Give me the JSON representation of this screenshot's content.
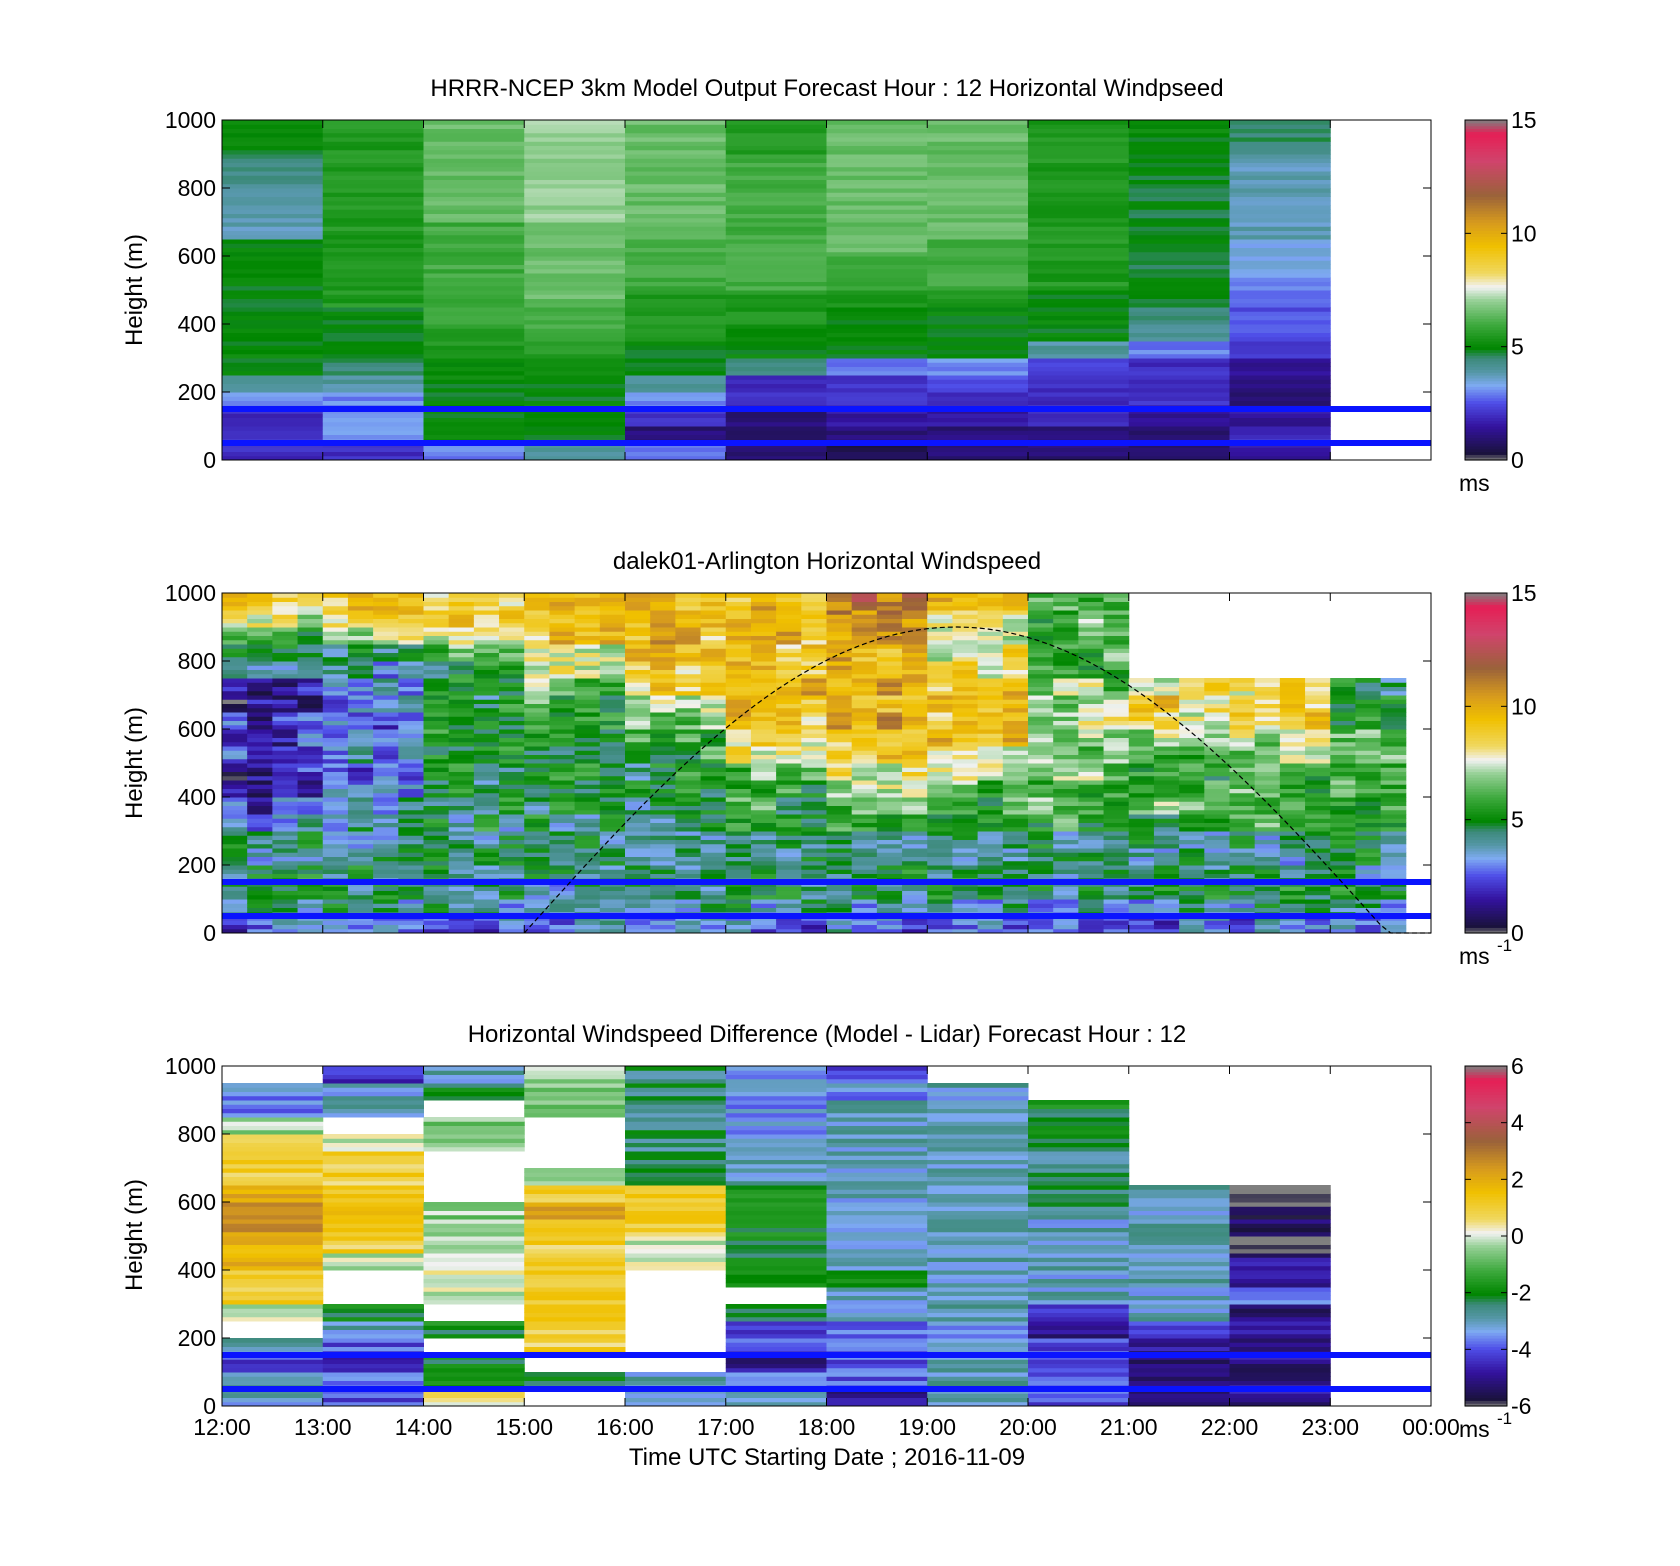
{
  "chart_data": [
    {
      "type": "heatmap",
      "title": "HRRR-NCEP 3km Model Output   Forecast Hour : 12 Horizontal Windpseed",
      "ylabel": "Height (m)",
      "xlabel": "",
      "ylim": [
        0,
        1000
      ],
      "yticks": [
        "0",
        "200",
        "400",
        "600",
        "800",
        "1000"
      ],
      "xticks": [
        "12:00",
        "13:00",
        "14:00",
        "15:00",
        "16:00",
        "17:00",
        "18:00",
        "19:00",
        "20:00",
        "21:00",
        "22:00",
        "23:00",
        "00:00"
      ],
      "x_tick_labels_visible": false,
      "colorbar": {
        "min": 0,
        "max": 15,
        "ticks": [
          "0",
          "5",
          "10",
          "15"
        ],
        "unit": "ms",
        "unit_sup": ""
      },
      "reference_lines_m": [
        150,
        50
      ],
      "hours": [
        12,
        13,
        14,
        15,
        16,
        17,
        18,
        19,
        20,
        21,
        22
      ],
      "height_bins_m": [
        25,
        75,
        125,
        175,
        225,
        275,
        325,
        375,
        425,
        475,
        525,
        575,
        625,
        675,
        725,
        775,
        825,
        875,
        925,
        975
      ],
      "values": [
        [
          2,
          2,
          3,
          4,
          3,
          1,
          0.5,
          1,
          1,
          1,
          1.5
        ],
        [
          2,
          3,
          5,
          5,
          1,
          1,
          1,
          1,
          1,
          1,
          2
        ],
        [
          2,
          3,
          5,
          5,
          2,
          1,
          1.5,
          1.5,
          2,
          1.5,
          1.5
        ],
        [
          3,
          3,
          5,
          5,
          3,
          2,
          2,
          2,
          2,
          2,
          1
        ],
        [
          4,
          4,
          5,
          5,
          4,
          2,
          2,
          2.5,
          2,
          2,
          1
        ],
        [
          5,
          4.5,
          5,
          5,
          5,
          4.5,
          3,
          3,
          2.5,
          2,
          1.5
        ],
        [
          5,
          5,
          5.5,
          5.5,
          5,
          5,
          5,
          5,
          4,
          3,
          2
        ],
        [
          5,
          5,
          5.5,
          6,
          5.5,
          5,
          5,
          5,
          5,
          4,
          2.5
        ],
        [
          5,
          5,
          6,
          6,
          5.5,
          5.5,
          5,
          5,
          5,
          4.5,
          2.5
        ],
        [
          5,
          5.5,
          6,
          6.5,
          5.5,
          5.5,
          5.5,
          5.5,
          5,
          4.8,
          3
        ],
        [
          5,
          5.5,
          6,
          6.5,
          6,
          6,
          6,
          6,
          5.5,
          4.8,
          3
        ],
        [
          5,
          5.5,
          6,
          6.5,
          6,
          6,
          6,
          6,
          5.5,
          4.8,
          3.5
        ],
        [
          5,
          5.5,
          6,
          6.5,
          6,
          6,
          6.5,
          6,
          5.5,
          4.8,
          3.5
        ],
        [
          3.8,
          5.5,
          6,
          6.5,
          6.5,
          6,
          6.5,
          6.5,
          5.5,
          4.8,
          3.8
        ],
        [
          3.8,
          5.5,
          6.5,
          7,
          6.5,
          6,
          6.5,
          6.5,
          5.5,
          4.8,
          3.8
        ],
        [
          3.8,
          5.5,
          6.5,
          7,
          6.5,
          6,
          6.5,
          6.5,
          5.5,
          4.8,
          3.8
        ],
        [
          4.2,
          5.5,
          6.5,
          7,
          6.5,
          6,
          6.5,
          6.5,
          5.5,
          4.8,
          3.8
        ],
        [
          4.5,
          5.5,
          6.5,
          7,
          6.5,
          6,
          6.5,
          6.5,
          5.5,
          4.8,
          3.8
        ],
        [
          5,
          5.5,
          6.5,
          7,
          6.5,
          5.5,
          6.5,
          6.5,
          5.5,
          5,
          4.5
        ],
        [
          5,
          5.5,
          6.5,
          7,
          6.5,
          5.5,
          6.5,
          6.5,
          5.5,
          5,
          4.5
        ]
      ]
    },
    {
      "type": "heatmap",
      "title": "dalek01-Arlington  Horizontal Windspeed",
      "ylabel": "Height (m)",
      "xlabel": "",
      "ylim": [
        0,
        1000
      ],
      "yticks": [
        "0",
        "200",
        "400",
        "600",
        "800",
        "1000"
      ],
      "xticks": [
        "12:00",
        "13:00",
        "14:00",
        "15:00",
        "16:00",
        "17:00",
        "18:00",
        "19:00",
        "20:00",
        "21:00",
        "22:00",
        "23:00",
        "00:00"
      ],
      "x_tick_labels_visible": false,
      "colorbar": {
        "min": 0,
        "max": 15,
        "ticks": [
          "0",
          "5",
          "10",
          "15"
        ],
        "unit": "ms",
        "unit_sup": "-1"
      },
      "reference_lines_m": [
        150,
        50
      ],
      "columns_per_hour": 4,
      "column_count": 47,
      "height_bins_m": [
        25,
        75,
        125,
        175,
        225,
        275,
        325,
        375,
        425,
        475,
        525,
        575,
        625,
        675,
        725,
        775,
        825,
        875,
        925,
        975
      ],
      "profile_hour_keys": [
        12,
        13,
        14,
        15,
        16,
        17,
        18,
        19,
        20,
        21,
        22,
        23
      ],
      "profiles": [
        [
          3,
          4,
          4.5,
          4.5,
          4.5,
          4.5,
          3.5,
          2.5,
          2,
          2,
          2,
          2,
          2,
          1.5,
          2,
          3,
          4.5,
          6,
          8,
          8.5
        ],
        [
          3,
          4,
          4.5,
          4.5,
          4.5,
          4.5,
          4.5,
          3.5,
          3,
          3,
          3,
          3,
          3,
          3,
          3,
          3.5,
          4.5,
          7.5,
          8.5,
          9
        ],
        [
          3,
          4,
          4.5,
          4.5,
          4.5,
          4.5,
          4.5,
          4.5,
          5,
          5,
          5,
          5,
          5,
          5,
          5,
          5,
          6,
          8,
          9,
          9
        ],
        [
          3,
          4,
          4.5,
          4.5,
          4.5,
          4.5,
          4.5,
          4.5,
          5,
          5,
          5,
          5,
          5.5,
          6,
          6.5,
          7,
          8,
          9,
          9,
          9
        ],
        [
          3,
          4,
          4.5,
          4.5,
          4.5,
          4.5,
          4.5,
          5,
          5,
          5,
          5.5,
          6,
          6.5,
          7.5,
          8.5,
          9,
          9.5,
          9.5,
          9.5,
          9.5
        ],
        [
          3,
          4,
          4.5,
          4.5,
          4.5,
          4.5,
          5,
          5.5,
          6,
          6.5,
          7.5,
          8.5,
          9,
          9.5,
          9.5,
          9.5,
          9.5,
          9.5,
          9.5,
          9.5
        ],
        [
          3,
          4,
          4.5,
          4.5,
          4.5,
          4.5,
          5.5,
          6,
          7,
          8,
          9,
          9.5,
          10,
          10,
          10,
          10,
          10,
          10.5,
          11,
          11.5
        ],
        [
          3,
          4,
          4.5,
          4.5,
          4.5,
          4.5,
          5.5,
          6,
          6.5,
          7.5,
          8.5,
          9,
          9,
          9,
          9,
          8.5,
          8,
          8,
          8.5,
          9
        ],
        [
          3,
          4,
          4.5,
          4.5,
          4.5,
          4.5,
          5.5,
          6,
          6,
          6.5,
          7,
          7,
          7,
          7,
          6.5,
          6,
          6,
          6,
          6.5,
          7
        ],
        [
          3,
          4,
          4.5,
          4.5,
          4.5,
          4.5,
          5.5,
          6,
          6,
          6,
          6.5,
          7.5,
          8.5,
          9,
          8,
          -1,
          -1,
          -1,
          -1,
          -1
        ],
        [
          3,
          4,
          4.5,
          4.5,
          4.5,
          4.5,
          5.5,
          6,
          6,
          6,
          6.5,
          7.5,
          8.5,
          9,
          8.5,
          -1,
          -1,
          -1,
          -1,
          -1
        ],
        [
          3,
          4,
          4.5,
          4.5,
          4.5,
          4.5,
          5,
          5.5,
          6,
          6,
          6,
          6,
          5.5,
          5.5,
          5,
          -1,
          -1,
          -1,
          -1,
          -1
        ]
      ],
      "sun_elevation_curve": {
        "start_hour": 15.0,
        "end_hour": 24.0,
        "peak_m": 900
      }
    },
    {
      "type": "heatmap",
      "title": "Horizontal Windspeed Difference (Model - Lidar) Forecast Hour : 12",
      "ylabel": "Height (m)",
      "xlabel": "Time UTC  Starting Date ; 2016-11-09",
      "ylim": [
        0,
        1000
      ],
      "yticks": [
        "0",
        "200",
        "400",
        "600",
        "800",
        "1000"
      ],
      "xticks": [
        "12:00",
        "13:00",
        "14:00",
        "15:00",
        "16:00",
        "17:00",
        "18:00",
        "19:00",
        "20:00",
        "21:00",
        "22:00",
        "23:00",
        "00:00"
      ],
      "x_tick_labels_visible": true,
      "colorbar": {
        "min": -6,
        "max": 6,
        "ticks": [
          "-6",
          "-4",
          "-2",
          "0",
          "2",
          "4",
          "6"
        ],
        "unit": "ms",
        "unit_sup": "-1"
      },
      "reference_lines_m": [
        150,
        50
      ],
      "hours": [
        12,
        13,
        14,
        15,
        16,
        17,
        18,
        19,
        20,
        21,
        22
      ],
      "height_bins_m": [
        25,
        75,
        125,
        175,
        225,
        275,
        325,
        375,
        425,
        475,
        525,
        575,
        625,
        675,
        725,
        775,
        825,
        875,
        925,
        975
      ],
      "values": [
        [
          -3,
          -4,
          0.5,
          -1,
          -3,
          -3,
          -5,
          -3,
          -4,
          -5,
          -5
        ],
        [
          -3,
          -4,
          -2,
          -2,
          -3,
          -3,
          -4,
          -3,
          -4,
          -5,
          -5
        ],
        [
          -4,
          -5,
          -2,
          -1,
          -1,
          -5,
          -4,
          -3,
          -4,
          -5,
          -5
        ],
        [
          -3,
          -4,
          -1,
          1,
          -1,
          -4,
          -4,
          -3,
          -4,
          -5,
          -5
        ],
        [
          -1,
          -3,
          -2,
          1,
          -1,
          -4,
          -4,
          -3.5,
          -5,
          -4,
          -5
        ],
        [
          0,
          -2,
          -1,
          1,
          -1,
          -2,
          -3,
          -3,
          -4,
          -3,
          -5
        ],
        [
          1,
          -1,
          0,
          1,
          -1,
          -1,
          -3,
          -3,
          -3,
          -3,
          -4
        ],
        [
          1,
          -1,
          0,
          1,
          -1,
          -2,
          -2,
          -3,
          -3,
          -3,
          -5
        ],
        [
          2,
          0,
          0,
          1,
          0,
          -2,
          -3,
          -3,
          -3,
          -3,
          -5
        ],
        [
          2,
          1,
          0,
          1,
          0,
          -2,
          -3,
          -3,
          -3,
          -3,
          -5.5
        ],
        [
          2.5,
          1.5,
          -0.5,
          1.5,
          1,
          -2,
          -3,
          -3,
          -3,
          -3,
          -5.5
        ],
        [
          2.5,
          1.5,
          -0.5,
          2,
          1,
          -2,
          -3,
          -3,
          -2.5,
          -3,
          -5.5
        ],
        [
          2,
          1.5,
          -1,
          1,
          1,
          -2,
          -3,
          -3,
          -2.5,
          -3,
          -6
        ],
        [
          1,
          1,
          -1,
          -0.5,
          -2,
          -3,
          -3,
          -3,
          -2.5,
          -99,
          -99
        ],
        [
          1,
          1,
          -1,
          -1,
          -2.5,
          -3,
          -3,
          -3,
          -2.5,
          -99,
          -99
        ],
        [
          0.5,
          0,
          -0.5,
          -1,
          -2.5,
          -3.5,
          -3,
          -3,
          -2,
          -99,
          -99
        ],
        [
          -0.5,
          -1,
          -0.5,
          -1,
          -2.5,
          -3.5,
          -3,
          -3,
          -2,
          -99,
          -99
        ],
        [
          -3.5,
          -3,
          -1,
          -0.5,
          -2.5,
          -3.5,
          -3,
          -3,
          -2,
          -99,
          -99
        ],
        [
          -3.5,
          -3,
          -2,
          -0.5,
          -2.5,
          -3.5,
          -3.5,
          -3,
          -1,
          -99,
          -99
        ],
        [
          -99,
          -4.5,
          -3,
          -0.5,
          -2.5,
          -3.5,
          -4,
          -99,
          -99,
          -99,
          -99
        ]
      ]
    }
  ]
}
